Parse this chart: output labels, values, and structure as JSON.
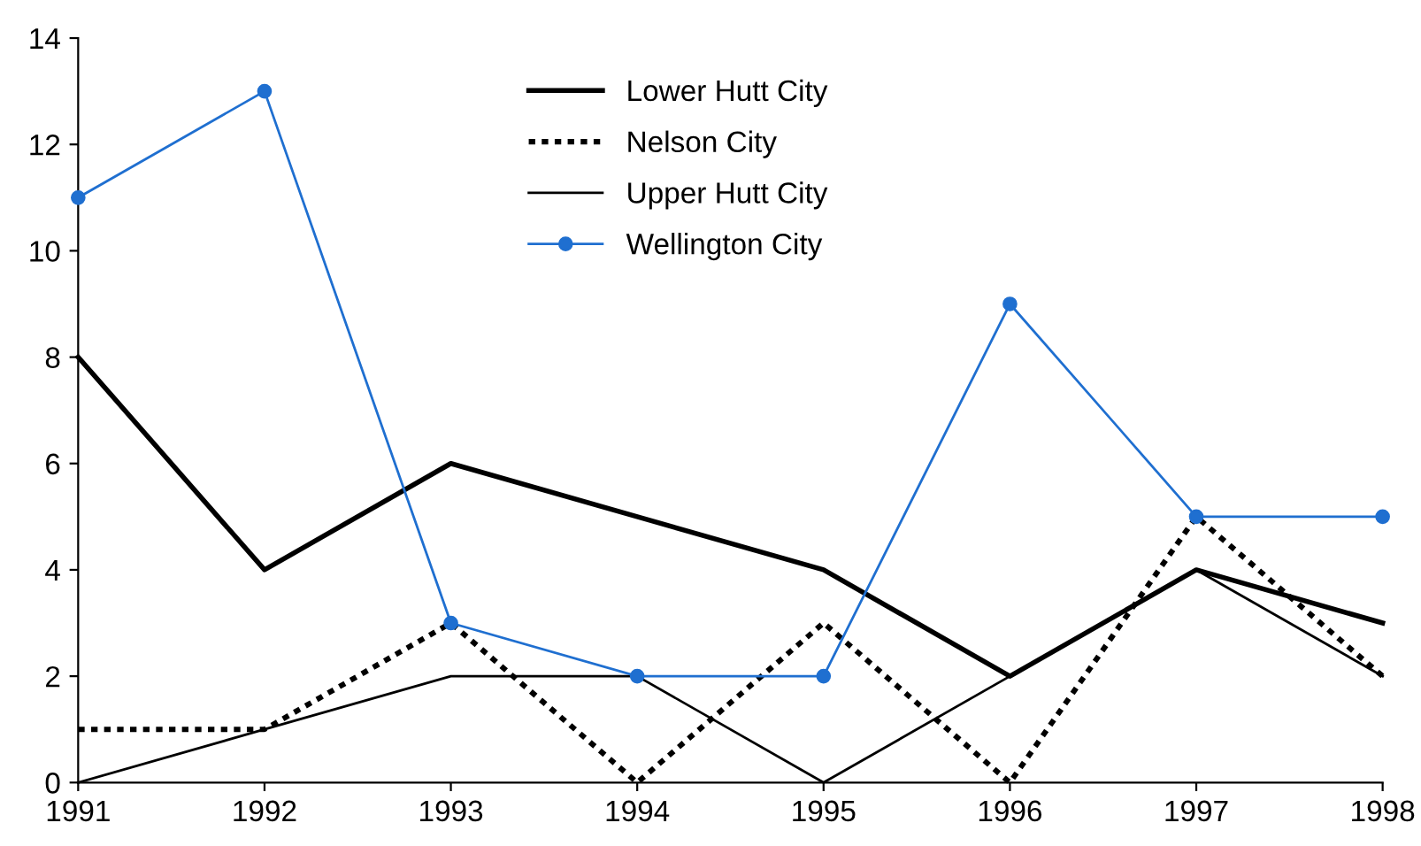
{
  "chart_data": {
    "type": "line",
    "x": [
      1991,
      1992,
      1993,
      1994,
      1995,
      1996,
      1997,
      1998
    ],
    "series": [
      {
        "name": "Lower Hutt City",
        "color": "#000000",
        "values": [
          8,
          4,
          6,
          5,
          4,
          2,
          4,
          3
        ],
        "line_style": "solid",
        "marker": "none"
      },
      {
        "name": "Nelson City",
        "color": "#000000",
        "values": [
          1,
          1,
          3,
          0,
          3,
          0,
          5,
          2
        ],
        "line_style": "dotted",
        "marker": "none"
      },
      {
        "name": "Upper Hutt City",
        "color": "#000000",
        "values": [
          0,
          1,
          2,
          2,
          0,
          2,
          4,
          2
        ],
        "line_style": "solid",
        "marker": "none"
      },
      {
        "name": "Wellington City",
        "color": "#1f6fd0",
        "values": [
          11,
          13,
          3,
          2,
          2,
          9,
          5,
          5
        ],
        "line_style": "solid",
        "marker": "circle"
      }
    ],
    "xlim": [
      1991,
      1998
    ],
    "xticks": [
      1991,
      1992,
      1993,
      1994,
      1995,
      1996,
      1997,
      1998
    ],
    "ylim": [
      0,
      14
    ],
    "yticks": [
      0,
      2,
      4,
      6,
      8,
      10,
      12,
      14
    ],
    "grid": false,
    "legend": "top"
  }
}
